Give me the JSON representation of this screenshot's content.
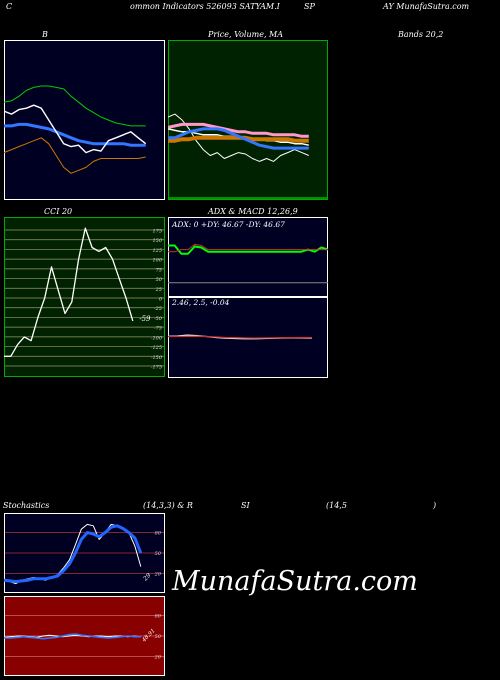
{
  "header": {
    "parts": [
      "C",
      "ommon  Indicators 526093 SATYAM.I",
      "SP",
      "AY MunafaSutra.com"
    ]
  },
  "watermark": "MunafaSutra.com",
  "colors": {
    "bg": "#000000",
    "navy": "#000022",
    "green_bg": "#002200",
    "red_bg": "#880000",
    "price_white": "#ffffff",
    "ma_blue": "#3377ff",
    "ma_green": "#00cc00",
    "ma_orange": "#cc7700",
    "adx_green": "#00ff00",
    "stoch_blue": "#2266ff"
  },
  "chart_data": [
    {
      "id": "bollinger",
      "type": "line",
      "title": "B",
      "series": [
        {
          "color": "#00cc00",
          "values": [
            62,
            63,
            66,
            70,
            72,
            73,
            73,
            72,
            71,
            66,
            62,
            58,
            55,
            52,
            50,
            48,
            47,
            46,
            46,
            46
          ]
        },
        {
          "color": "#3377ff",
          "values": [
            46,
            46,
            47,
            47,
            46,
            45,
            44,
            42,
            40,
            38,
            36,
            35,
            34,
            34,
            34,
            34,
            34,
            33,
            33,
            33
          ]
        },
        {
          "color": "#ffffff",
          "values": [
            56,
            54,
            57,
            58,
            60,
            58,
            50,
            42,
            34,
            32,
            33,
            28,
            30,
            29,
            36,
            38,
            40,
            42,
            38,
            34
          ]
        },
        {
          "color": "#cc7700",
          "values": [
            28,
            30,
            32,
            34,
            36,
            38,
            34,
            26,
            18,
            14,
            16,
            18,
            22,
            24,
            24,
            24,
            24,
            24,
            24,
            25
          ]
        }
      ],
      "ylim": [
        0,
        100
      ]
    },
    {
      "id": "price_ma",
      "type": "line",
      "title": "Price,  Volume, MA",
      "ticks": [
        "",
        ""
      ],
      "series": [
        {
          "color": "#ffffff",
          "values": [
            52,
            54,
            50,
            44,
            36,
            30,
            26,
            28,
            24,
            26,
            28,
            27,
            24,
            22,
            24,
            22,
            26,
            28,
            30,
            28,
            26
          ]
        },
        {
          "color": "#ffffff",
          "values": [
            44,
            43,
            42,
            42,
            41,
            40,
            40,
            40,
            39,
            39,
            38,
            38,
            37,
            37,
            36,
            36,
            35,
            35,
            34,
            34,
            33
          ]
        },
        {
          "color": "#ff99cc",
          "values": [
            45,
            46,
            47,
            47,
            47,
            47,
            46,
            45,
            44,
            43,
            42,
            42,
            41,
            41,
            41,
            40,
            40,
            40,
            40,
            39,
            39
          ]
        },
        {
          "color": "#cc7700",
          "values": [
            36,
            36,
            37,
            37,
            38,
            38,
            38,
            38,
            38,
            38,
            38,
            38,
            37,
            37,
            37,
            37,
            37,
            37,
            36,
            36,
            36
          ]
        },
        {
          "color": "#3377ff",
          "values": [
            38,
            38,
            40,
            42,
            43,
            44,
            44,
            44,
            43,
            41,
            39,
            37,
            35,
            33,
            32,
            31,
            31,
            31,
            31,
            31,
            31
          ]
        }
      ],
      "ylim": [
        0,
        100
      ]
    },
    {
      "id": "bands",
      "type": "line",
      "title": "Bands 20,2",
      "series": []
    },
    {
      "id": "cci",
      "type": "line",
      "title": "CCI 20",
      "ticks": [
        "175",
        "150",
        "125",
        "100",
        "75",
        "50",
        "25",
        "0",
        "-25",
        "-50",
        "-75",
        "-100",
        "-125",
        "-150",
        "-175"
      ],
      "current_label": "-59",
      "series": [
        {
          "color": "#ffffff",
          "values": [
            -150,
            -150,
            -120,
            -100,
            -110,
            -50,
            0,
            80,
            20,
            -40,
            -10,
            100,
            180,
            130,
            120,
            130,
            100,
            50,
            0,
            -59
          ]
        }
      ],
      "ylim": [
        -200,
        200
      ]
    },
    {
      "id": "adx",
      "type": "line",
      "title": "ADX  & MACD 12,26,9",
      "label": "ADX: 0  +DY: 46.67 -DY: 46.67",
      "series": [
        {
          "color": "#00ff00",
          "values": [
            46,
            46,
            38,
            38,
            45,
            44,
            40,
            40,
            40,
            40,
            40,
            40,
            40,
            40,
            40,
            40,
            40,
            40,
            40,
            40,
            40,
            42,
            40,
            44,
            42
          ]
        },
        {
          "color": "#cc3333",
          "values": [
            40,
            40,
            42,
            42,
            47,
            46,
            42,
            42,
            42,
            42,
            42,
            42,
            42,
            42,
            42,
            42,
            42,
            42,
            42,
            42,
            42,
            42,
            42,
            42,
            42
          ]
        },
        {
          "color": "#888888",
          "values": [
            10,
            10,
            10,
            10,
            10,
            10,
            10,
            10,
            10,
            10,
            10,
            10,
            10,
            10,
            10,
            10,
            10,
            10,
            10,
            10,
            10,
            10,
            10,
            10,
            10
          ]
        }
      ],
      "ylim": [
        0,
        60
      ]
    },
    {
      "id": "macd",
      "type": "line",
      "label": "2.46,  2.5,  -0.04",
      "series": [
        {
          "color": "#ffffff",
          "values": [
            2.6,
            2.62,
            2.7,
            2.65,
            2.58,
            2.5,
            2.45,
            2.42,
            2.4,
            2.4,
            2.42,
            2.44,
            2.46,
            2.47,
            2.47,
            2.46
          ]
        },
        {
          "color": "#cc3333",
          "values": [
            2.58,
            2.58,
            2.6,
            2.6,
            2.58,
            2.54,
            2.5,
            2.48,
            2.46,
            2.45,
            2.46,
            2.47,
            2.48,
            2.49,
            2.5,
            2.5
          ]
        }
      ],
      "ylim": [
        0,
        5
      ]
    },
    {
      "id": "stochastics",
      "type": "line",
      "title_parts": [
        "Stochastics",
        "(14,3,3) & R",
        "SI",
        "(14,5",
        ")"
      ],
      "ticks": [
        "80",
        "50",
        "20"
      ],
      "current_label": "29",
      "series": [
        {
          "color": "#ffffff",
          "values": [
            12,
            8,
            5,
            10,
            12,
            14,
            12,
            10,
            14,
            18,
            28,
            40,
            62,
            85,
            92,
            90,
            70,
            80,
            92,
            90,
            86,
            80,
            60,
            30
          ]
        },
        {
          "color": "#2266ff",
          "values": [
            10,
            9,
            8,
            9,
            10,
            12,
            12,
            12,
            14,
            16,
            24,
            34,
            50,
            70,
            80,
            78,
            74,
            80,
            88,
            90,
            86,
            80,
            72,
            50
          ]
        }
      ],
      "ylim": [
        0,
        100
      ]
    },
    {
      "id": "rsi",
      "type": "line",
      "ticks": [
        "80",
        "50",
        "20"
      ],
      "current_label": "48.91",
      "series": [
        {
          "color": "#ffffff",
          "values": [
            48,
            49,
            50,
            50,
            49,
            48,
            50,
            51,
            50,
            49,
            50,
            51,
            50,
            49,
            50,
            50,
            49,
            50,
            50,
            49,
            50,
            49
          ]
        },
        {
          "color": "#3377ff",
          "values": [
            47,
            47,
            48,
            49,
            48,
            47,
            46,
            47,
            48,
            50,
            52,
            53,
            51,
            50,
            49,
            48,
            47,
            48,
            49,
            50,
            49,
            49
          ]
        }
      ],
      "ylim": [
        0,
        100
      ]
    }
  ]
}
